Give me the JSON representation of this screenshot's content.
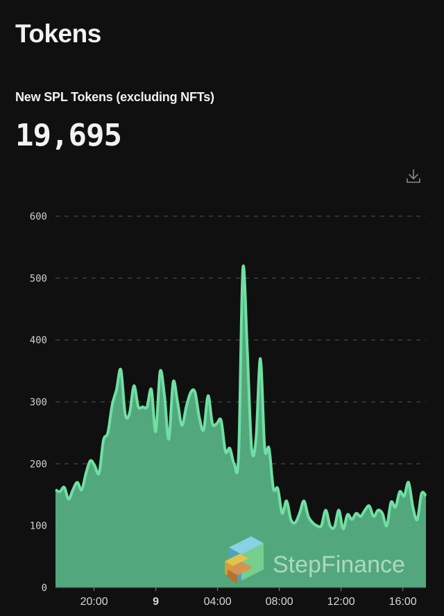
{
  "page": {
    "title": "Tokens"
  },
  "metric": {
    "label": "New SPL Tokens (excluding NFTs)",
    "value": "19,695"
  },
  "icons": {
    "download": "download-icon"
  },
  "watermark": {
    "text": "StepFinance"
  },
  "colors": {
    "background": "#101010",
    "line": "#6fe0a3",
    "fill": "#5bbd8b",
    "grid": "#555555"
  },
  "chart_data": {
    "type": "area",
    "ylim": [
      0,
      600
    ],
    "yticks": [
      "0",
      "100",
      "200",
      "300",
      "400",
      "500",
      "600"
    ],
    "grid": true,
    "xticks": [
      {
        "label": "20:00",
        "hour": 20,
        "bold": false
      },
      {
        "label": "9",
        "hour": 24,
        "bold": true
      },
      {
        "label": "04:00",
        "hour": 28,
        "bold": false
      },
      {
        "label": "08:00",
        "hour": 32,
        "bold": false
      },
      {
        "label": "12:00",
        "hour": 36,
        "bold": false
      },
      {
        "label": "16:00",
        "hour": 40,
        "bold": false
      }
    ],
    "x_hours_start": 17.5,
    "x_hours_end": 41.5,
    "values": [
      158,
      155,
      162,
      143,
      158,
      170,
      158,
      185,
      205,
      197,
      185,
      238,
      250,
      295,
      320,
      352,
      280,
      282,
      326,
      292,
      292,
      292,
      320,
      252,
      349,
      310,
      240,
      332,
      300,
      262,
      292,
      315,
      316,
      275,
      255,
      310,
      265,
      265,
      270,
      220,
      225,
      200,
      213,
      515,
      385,
      225,
      240,
      370,
      225,
      225,
      160,
      160,
      120,
      140,
      110,
      105,
      120,
      140,
      115,
      105,
      100,
      100,
      125,
      100,
      98,
      125,
      95,
      118,
      110,
      120,
      115,
      125,
      132,
      115,
      125,
      120,
      100,
      138,
      130,
      155,
      148,
      170,
      130,
      110,
      152,
      148
    ]
  }
}
